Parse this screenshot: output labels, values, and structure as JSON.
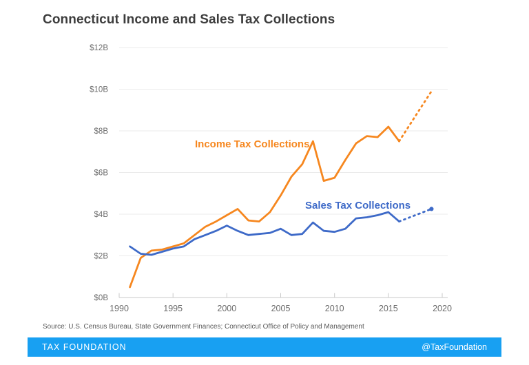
{
  "chart_data": {
    "type": "line",
    "title": "Connecticut Income and Sales Tax Collections",
    "xlabel": "",
    "ylabel": "",
    "xlim": [
      1990,
      2020
    ],
    "ylim": [
      0,
      12
    ],
    "grid": "horizontal",
    "x_ticks": [
      1990,
      1995,
      2000,
      2005,
      2010,
      2015,
      2020
    ],
    "x_tick_labels": [
      "1990",
      "1995",
      "2000",
      "2005",
      "2010",
      "2015",
      "2020"
    ],
    "y_ticks": [
      0,
      2,
      4,
      6,
      8,
      10,
      12
    ],
    "y_tick_labels": [
      "$0B",
      "$2B",
      "$4B",
      "$6B",
      "$8B",
      "$10B",
      "$12B"
    ],
    "years": [
      1991,
      1992,
      1993,
      1994,
      1995,
      1996,
      1997,
      1998,
      1999,
      2000,
      2001,
      2002,
      2003,
      2004,
      2005,
      2006,
      2007,
      2008,
      2009,
      2010,
      2011,
      2012,
      2013,
      2014,
      2015,
      2016,
      2017,
      2018,
      2019
    ],
    "solid_through": 2016,
    "series": [
      {
        "name": "Income Tax Collections",
        "color": "#F6871F",
        "line_style_after_2016": "dotted",
        "end_dot": false,
        "values": [
          0.5,
          1.9,
          2.25,
          2.3,
          2.45,
          2.6,
          3.0,
          3.4,
          3.65,
          3.95,
          4.25,
          3.7,
          3.65,
          4.1,
          4.9,
          5.8,
          6.4,
          7.5,
          5.6,
          5.75,
          6.6,
          7.4,
          7.75,
          7.7,
          8.2,
          7.5,
          8.3,
          9.1,
          9.9
        ]
      },
      {
        "name": "Sales Tax Collections",
        "color": "#3E6AC8",
        "line_style_after_2016": "dotted",
        "end_dot": true,
        "values": [
          2.45,
          2.1,
          2.05,
          2.2,
          2.35,
          2.45,
          2.8,
          3.0,
          3.2,
          3.45,
          3.2,
          3.0,
          3.05,
          3.1,
          3.3,
          3.0,
          3.05,
          3.6,
          3.2,
          3.15,
          3.3,
          3.8,
          3.85,
          3.95,
          4.1,
          3.65,
          3.85,
          4.05,
          4.25
        ]
      }
    ],
    "legend_position": "inline-labels"
  },
  "source": "Source: U.S. Census Bureau, State Government Finances; Connecticut Office of Policy and Management",
  "footer": {
    "brand": "TAX FOUNDATION",
    "handle": "@TaxFoundation",
    "bar_color": "#18A0F2"
  },
  "style_colors": {
    "title_text": "#3D3D3D",
    "tick_text": "#6B6B6B",
    "gridline": "#EBEBEB",
    "axis_line": "#C9C9C9"
  }
}
